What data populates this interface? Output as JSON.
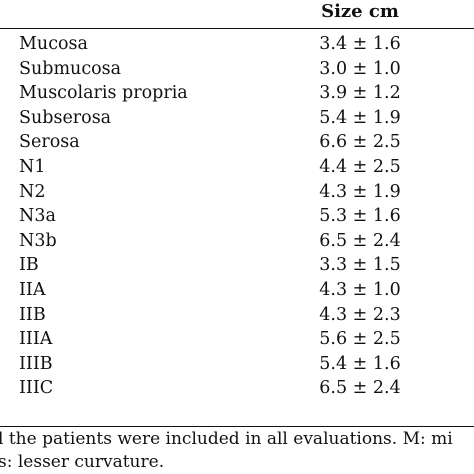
{
  "table": {
    "header": {
      "size_label": "Size cm"
    },
    "rows": [
      {
        "label": "Mucosa",
        "value": "3.4 ± 1.6"
      },
      {
        "label": "Submucosa",
        "value": "3.0 ± 1.0"
      },
      {
        "label": "Muscolaris propria",
        "value": "3.9 ± 1.2"
      },
      {
        "label": "Subserosa",
        "value": "5.4 ± 1.9"
      },
      {
        "label": "Serosa",
        "value": "6.6 ± 2.5"
      },
      {
        "label": "N1",
        "value": "4.4 ± 2.5"
      },
      {
        "label": "N2",
        "value": "4.3 ± 1.9"
      },
      {
        "label": "N3a",
        "value": "5.3 ± 1.6"
      },
      {
        "label": "N3b",
        "value": "6.5 ± 2.4"
      },
      {
        "label": "IB",
        "value": "3.3 ± 1.5"
      },
      {
        "label": "IIA",
        "value": "4.3 ± 1.0"
      },
      {
        "label": "IIB",
        "value": "4.3 ± 2.3"
      },
      {
        "label": "IIIA",
        "value": "5.6 ± 2.5"
      },
      {
        "label": "IIIB",
        "value": "5.4 ± 1.6"
      },
      {
        "label": "IIIC",
        "value": "6.5 ± 2.4"
      }
    ]
  },
  "footnote": {
    "line1": "l the patients were included in all evaluations.  M: mi",
    "line2": "s: lesser curvature."
  }
}
